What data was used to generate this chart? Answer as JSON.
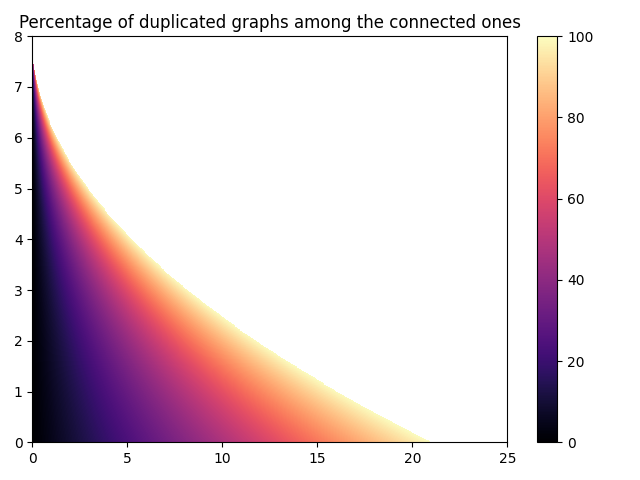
{
  "title": "Percentage of duplicated graphs among the connected ones",
  "xlim": [
    0,
    25
  ],
  "ylim": [
    0,
    8
  ],
  "xticks": [
    0,
    5,
    10,
    15,
    20,
    25
  ],
  "yticks": [
    0,
    1,
    2,
    3,
    4,
    5,
    6,
    7,
    8
  ],
  "colormap": "hot",
  "vmin": 0,
  "vmax": 100,
  "nx": 500,
  "ny": 400,
  "x_max": 25.0,
  "y_max": 8.0,
  "cbar_ticks": [
    0,
    20,
    40,
    60,
    80,
    100
  ],
  "title_fontsize": 12
}
